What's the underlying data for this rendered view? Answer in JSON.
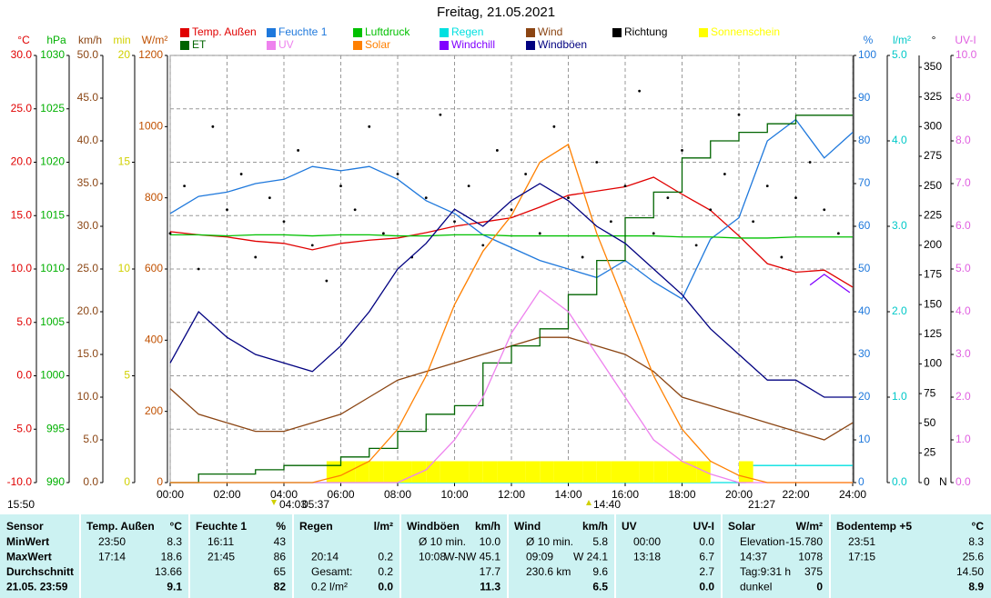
{
  "chart_data": {
    "type": "line",
    "title": "Freitag, 21.05.2021",
    "xlim": [
      0,
      24
    ],
    "xticks": [
      {
        "value": 0,
        "label": "00:00"
      },
      {
        "value": 2,
        "label": "02:00"
      },
      {
        "value": 4,
        "label": "04:00"
      },
      {
        "value": 6,
        "label": "06:00"
      },
      {
        "value": 8,
        "label": "08:00"
      },
      {
        "value": 10,
        "label": "10:00"
      },
      {
        "value": 12,
        "label": "12:00"
      },
      {
        "value": 14,
        "label": "14:00"
      },
      {
        "value": 16,
        "label": "16:00"
      },
      {
        "value": 18,
        "label": "18:00"
      },
      {
        "value": 20,
        "label": "20:00"
      },
      {
        "value": 22,
        "label": "22:00"
      },
      {
        "value": 24,
        "label": "24:00"
      }
    ],
    "grid": true,
    "x": [
      0,
      1,
      2,
      3,
      4,
      5,
      6,
      7,
      8,
      9,
      10,
      11,
      12,
      13,
      14,
      15,
      16,
      17,
      18,
      19,
      20,
      21,
      22,
      23,
      24
    ],
    "axes": [
      {
        "label": "°C",
        "color": "#e00000",
        "side": "left",
        "lim": [
          -10,
          30
        ],
        "ticks": [
          {
            "value": -10,
            "label": "-10.0"
          },
          {
            "value": -5,
            "label": "-5.0"
          },
          {
            "value": 0,
            "label": "0.0"
          },
          {
            "value": 5,
            "label": "5.0"
          },
          {
            "value": 10,
            "label": "10.0"
          },
          {
            "value": 15,
            "label": "15.0"
          },
          {
            "value": 20,
            "label": "20.0"
          },
          {
            "value": 25,
            "label": "25.0"
          },
          {
            "value": 30,
            "label": "30.0"
          }
        ]
      },
      {
        "label": "hPa",
        "color": "#00b000",
        "side": "left",
        "lim": [
          990,
          1030
        ],
        "ticks": [
          990,
          995,
          1000,
          1005,
          1010,
          1015,
          1020,
          1025,
          1030
        ]
      },
      {
        "label": "km/h",
        "color": "#8b4513",
        "side": "left",
        "lim": [
          0,
          50
        ],
        "ticks": [
          {
            "value": 0,
            "label": "0.0"
          },
          {
            "value": 5,
            "label": "5.0"
          },
          {
            "value": 10,
            "label": "10.0"
          },
          {
            "value": 15,
            "label": "15.0"
          },
          {
            "value": 20,
            "label": "20.0"
          },
          {
            "value": 25,
            "label": "25.0"
          },
          {
            "value": 30,
            "label": "30.0"
          },
          {
            "value": 35,
            "label": "35.0"
          },
          {
            "value": 40,
            "label": "40.0"
          },
          {
            "value": 45,
            "label": "45.0"
          },
          {
            "value": 50,
            "label": "50.0"
          }
        ]
      },
      {
        "label": "min",
        "color": "#d0d000",
        "side": "left",
        "lim": [
          0,
          20
        ],
        "ticks": [
          0,
          5,
          10,
          15,
          20
        ]
      },
      {
        "label": "W/m²",
        "color": "#c05000",
        "side": "left",
        "lim": [
          0,
          1200
        ],
        "ticks": [
          0,
          200,
          400,
          600,
          800,
          1000,
          1200
        ]
      },
      {
        "label": "%",
        "color": "#1e78dc",
        "side": "right",
        "lim": [
          0,
          100
        ],
        "ticks": [
          0,
          10,
          20,
          30,
          40,
          50,
          60,
          70,
          80,
          90,
          100
        ]
      },
      {
        "label": "l/m²",
        "color": "#00c8c8",
        "side": "right",
        "lim": [
          0,
          5
        ],
        "ticks": [
          {
            "value": 0,
            "label": "0.0"
          },
          {
            "value": 1,
            "label": "1.0"
          },
          {
            "value": 2,
            "label": "2.0"
          },
          {
            "value": 3,
            "label": "3.0"
          },
          {
            "value": 4,
            "label": "4.0"
          },
          {
            "value": 5,
            "label": "5.0"
          }
        ]
      },
      {
        "label": "°",
        "color": "#000000",
        "side": "right",
        "lim": [
          0,
          360
        ],
        "north": "N",
        "ticks": [
          0,
          25,
          50,
          75,
          100,
          125,
          150,
          175,
          200,
          225,
          250,
          275,
          300,
          325,
          350
        ]
      },
      {
        "label": "UV-I",
        "color": "#e060e0",
        "side": "right",
        "lim": [
          0,
          10
        ],
        "ticks": [
          {
            "value": 0,
            "label": "0.0"
          },
          {
            "value": 1,
            "label": "1.0"
          },
          {
            "value": 2,
            "label": "2.0"
          },
          {
            "value": 3,
            "label": "3.0"
          },
          {
            "value": 4,
            "label": "4.0"
          },
          {
            "value": 5,
            "label": "5.0"
          },
          {
            "value": 6,
            "label": "6.0"
          },
          {
            "value": 7,
            "label": "7.0"
          },
          {
            "value": 8,
            "label": "8.0"
          },
          {
            "value": 9,
            "label": "9.0"
          },
          {
            "value": 10,
            "label": "10.0"
          }
        ]
      }
    ],
    "series": [
      {
        "name": "Temp. Außen",
        "color": "#e00000",
        "axis": 0,
        "style": "line",
        "values": [
          13.5,
          13.2,
          13,
          12.6,
          12.4,
          11.8,
          12.4,
          12.7,
          12.9,
          13.4,
          14,
          14.4,
          14.8,
          15.8,
          16.9,
          17.3,
          17.7,
          18.6,
          17,
          15.5,
          13.1,
          10.5,
          9.7,
          9.9,
          8.3
        ]
      },
      {
        "name": "Feuchte 1",
        "color": "#1e78dc",
        "axis": 5,
        "style": "line",
        "values": [
          63,
          67,
          68,
          70,
          71,
          74,
          73,
          74,
          71,
          66,
          63,
          58,
          55,
          52,
          50,
          48,
          52,
          47,
          43,
          57,
          62,
          80,
          85,
          76,
          82
        ]
      },
      {
        "name": "Luftdruck",
        "color": "#00c000",
        "axis": 1,
        "style": "line",
        "values": [
          1013.2,
          1013.2,
          1013.1,
          1013.2,
          1013.2,
          1013.1,
          1013.2,
          1013.2,
          1013.1,
          1013.1,
          1013.2,
          1013.2,
          1013.1,
          1013.1,
          1013.1,
          1013.1,
          1013.1,
          1013.1,
          1013,
          1013,
          1012.9,
          1012.9,
          1013,
          1013,
          1013
        ]
      },
      {
        "name": "Regen",
        "color": "#00e0e0",
        "axis": 6,
        "style": "step",
        "x": [
          0,
          20.23,
          24
        ],
        "values": [
          0,
          0.2,
          0.2
        ]
      },
      {
        "name": "Wind",
        "color": "#8b4513",
        "axis": 2,
        "style": "line",
        "values": [
          11,
          8,
          7,
          6,
          6,
          7,
          8,
          10,
          12,
          13,
          14,
          15,
          16,
          17,
          17,
          16,
          15,
          13,
          10,
          9,
          8,
          7,
          6,
          5,
          7
        ]
      },
      {
        "name": "Richtung",
        "color": "#000000",
        "axis": 7,
        "style": "dots",
        "x": [
          0,
          0.5,
          1,
          1.5,
          2,
          2.5,
          3,
          3.5,
          4,
          4.5,
          5,
          5.5,
          6,
          6.5,
          7,
          7.5,
          8,
          8.5,
          9,
          9.5,
          10,
          10.5,
          11,
          11.5,
          12,
          12.5,
          13,
          13.5,
          14,
          14.5,
          15,
          15.5,
          16,
          16.5,
          17,
          17.5,
          18,
          18.5,
          19,
          19.5,
          20,
          20.5,
          21,
          21.5,
          22,
          22.5,
          23,
          23.5
        ],
        "values": [
          210,
          250,
          180,
          300,
          230,
          260,
          190,
          240,
          220,
          280,
          200,
          170,
          250,
          230,
          300,
          210,
          260,
          190,
          240,
          310,
          220,
          250,
          200,
          280,
          230,
          260,
          210,
          300,
          240,
          190,
          270,
          220,
          250,
          330,
          210,
          240,
          280,
          200,
          230,
          260,
          310,
          220,
          250,
          190,
          240,
          270,
          230,
          210
        ]
      },
      {
        "name": "Sonnenschein",
        "color": "#ffff00",
        "axis": 3,
        "style": "bars",
        "x": [
          0,
          0.5,
          1,
          1.5,
          2,
          2.5,
          3,
          3.5,
          4,
          4.5,
          5,
          5.5,
          6,
          6.5,
          7,
          7.5,
          8,
          8.5,
          9,
          9.5,
          10,
          10.5,
          11,
          11.5,
          12,
          12.5,
          13,
          13.5,
          14,
          14.5,
          15,
          15.5,
          16,
          16.5,
          17,
          17.5,
          18,
          18.5,
          19,
          19.5,
          20,
          20.5,
          21,
          21.5,
          22,
          22.5,
          23,
          23.5
        ],
        "values": [
          0,
          0,
          0,
          0,
          0,
          0,
          0,
          0,
          0,
          0,
          0,
          1,
          1,
          1,
          1,
          1,
          1,
          1,
          1,
          1,
          1,
          1,
          1,
          1,
          1,
          1,
          1,
          1,
          1,
          1,
          1,
          1,
          1,
          1,
          1,
          1,
          1,
          1,
          0,
          0,
          1,
          0,
          0,
          0,
          0,
          0,
          0,
          0
        ]
      },
      {
        "name": "ET",
        "color": "#006400",
        "axis": 6,
        "style": "step",
        "values": [
          0,
          0.1,
          0.1,
          0.15,
          0.2,
          0.2,
          0.3,
          0.4,
          0.6,
          0.8,
          0.9,
          1.4,
          1.6,
          1.8,
          2.2,
          2.6,
          3.1,
          3.4,
          3.8,
          4,
          4.1,
          4.2,
          4.3,
          4.3,
          4.3
        ]
      },
      {
        "name": "UV",
        "color": "#ee82ee",
        "axis": 8,
        "style": "line",
        "values": [
          0,
          0,
          0,
          0,
          0,
          0,
          0,
          0,
          0,
          0.3,
          1,
          2,
          3.5,
          4.5,
          4,
          3,
          2,
          1,
          0.5,
          0.2,
          0,
          0,
          0,
          0,
          0
        ]
      },
      {
        "name": "Solar",
        "color": "#ff8000",
        "axis": 4,
        "style": "line",
        "values": [
          0,
          0,
          0,
          0,
          0,
          0,
          20,
          60,
          150,
          300,
          500,
          650,
          750,
          900,
          950,
          700,
          500,
          300,
          150,
          60,
          20,
          0,
          0,
          0,
          0
        ]
      },
      {
        "name": "Windchill",
        "color": "#8000ff",
        "axis": 0,
        "style": "line",
        "x": [
          22.5,
          23,
          23.9
        ],
        "values": [
          8.5,
          9.5,
          7.8
        ]
      },
      {
        "name": "Windböen",
        "color": "#000080",
        "axis": 2,
        "style": "line",
        "values": [
          14,
          20,
          17,
          15,
          14,
          13,
          16,
          20,
          25,
          28,
          32,
          30,
          33,
          35,
          33,
          30,
          28,
          25,
          22,
          18,
          15,
          12,
          12,
          10,
          10
        ]
      }
    ],
    "markers": [
      "15:50",
      "04:03",
      "05:37",
      "14:40",
      "21:27"
    ]
  },
  "table": {
    "panels": [
      {
        "title": "Sensor",
        "rows": [
          [
            "MinWert"
          ],
          [
            "MaxWert"
          ],
          [
            "Durchschnitt"
          ],
          [
            "21.05. 23:59"
          ]
        ]
      },
      {
        "title": "Temp. Außen",
        "unit": "°C",
        "rows": [
          [
            "23:50",
            "8.3"
          ],
          [
            "17:14",
            "18.6"
          ],
          [
            "13.66"
          ],
          [
            "9.1"
          ]
        ]
      },
      {
        "title": "Feuchte 1",
        "unit": "%",
        "rows": [
          [
            "16:11",
            "43"
          ],
          [
            "21:45",
            "86"
          ],
          [
            "65"
          ],
          [
            "82"
          ]
        ]
      },
      {
        "title": "Regen",
        "unit": "l/m²",
        "rows": [
          [],
          [
            "20:14",
            "0.2"
          ],
          [
            "Gesamt:",
            "0.2"
          ],
          [
            "0.2 l/m²",
            "0.0"
          ]
        ]
      },
      {
        "title": "Windböen",
        "unit": "km/h",
        "rows": [
          [
            "Ø 10 min.",
            "10.0"
          ],
          [
            "10:08",
            "W-NW 45.1"
          ],
          [
            "17.7"
          ],
          [
            "11.3"
          ]
        ]
      },
      {
        "title": "Wind",
        "unit": "km/h",
        "rows": [
          [
            "Ø 10 min.",
            "5.8"
          ],
          [
            "09:09",
            "W 24.1"
          ],
          [
            "230.6 km",
            "9.6"
          ],
          [
            "6.5"
          ]
        ]
      },
      {
        "title": "UV",
        "unit": "UV-I",
        "rows": [
          [
            "00:00",
            "0.0"
          ],
          [
            "13:18",
            "6.7"
          ],
          [
            "2.7"
          ],
          [
            "0.0"
          ]
        ]
      },
      {
        "title": "Solar",
        "unit": "W/m²",
        "rows": [
          [
            "Elevation",
            "-15.780"
          ],
          [
            "14:37",
            "1078"
          ],
          [
            "Tag:9:31 h",
            "375"
          ],
          [
            "dunkel",
            "0"
          ]
        ]
      },
      {
        "title": "Bodentemp +5",
        "unit": "°C",
        "rows": [
          [
            "23:51",
            "8.3"
          ],
          [
            "17:15",
            "25.6"
          ],
          [
            "14.50"
          ],
          [
            "8.9"
          ]
        ]
      }
    ]
  }
}
